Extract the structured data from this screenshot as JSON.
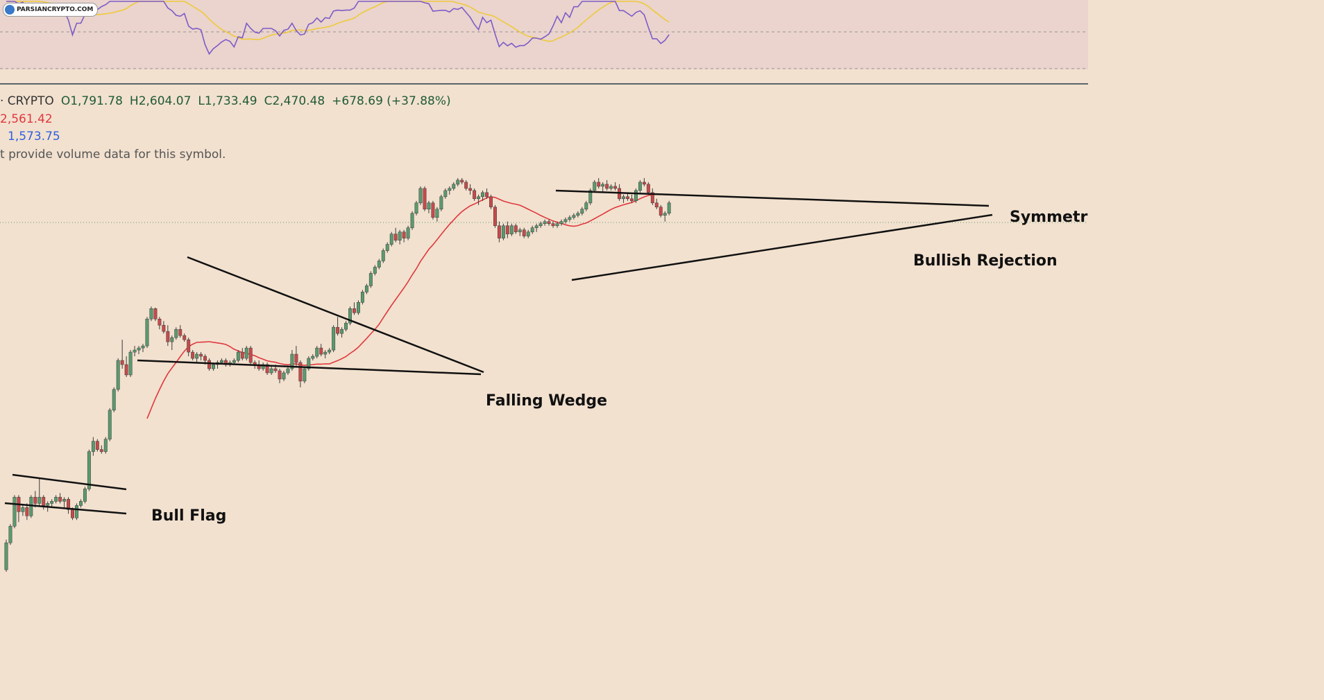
{
  "watermark": "PARSIANCRYPTO.COM",
  "legend": {
    "symbol": "· CRYPTO",
    "open": "O1,791.78",
    "high": "H2,604.07",
    "low": "L1,733.49",
    "close": "C2,470.48",
    "change": "+678.69 (+37.88%)",
    "ma_red": "2,561.42",
    "ma_blue": "1,573.75",
    "volume_note": "t provide volume data for this symbol."
  },
  "annotations": {
    "bull_flag": "Bull Flag",
    "falling_wedge": "Falling Wedge",
    "symmetric": "Symmetri",
    "bullish_rejection": "Bullish Rejection"
  },
  "colors": {
    "up": "#5a9a6e",
    "down": "#c74a4a",
    "ma_red": "#e0383e",
    "ma_blue": "#2f5fe0",
    "rsi": "#7e5bc8",
    "rsi_ma": "#efc93b"
  },
  "chart_data": {
    "type": "candlestick",
    "title": "",
    "series": [
      {
        "name": "price",
        "ohlc": [
          [
            1120,
            1265,
            1110,
            1250
          ],
          [
            1250,
            1340,
            1240,
            1330
          ],
          [
            1330,
            1480,
            1320,
            1470
          ],
          [
            1470,
            1480,
            1350,
            1400
          ],
          [
            1400,
            1430,
            1380,
            1420
          ],
          [
            1420,
            1440,
            1360,
            1380
          ],
          [
            1380,
            1480,
            1370,
            1470
          ],
          [
            1470,
            1500,
            1420,
            1440
          ],
          [
            1440,
            1560,
            1430,
            1470
          ],
          [
            1470,
            1480,
            1410,
            1430
          ],
          [
            1430,
            1450,
            1400,
            1440
          ],
          [
            1440,
            1460,
            1420,
            1450
          ],
          [
            1450,
            1480,
            1440,
            1470
          ],
          [
            1470,
            1490,
            1440,
            1450
          ],
          [
            1450,
            1470,
            1420,
            1460
          ],
          [
            1460,
            1470,
            1390,
            1410
          ],
          [
            1410,
            1420,
            1360,
            1370
          ],
          [
            1370,
            1440,
            1360,
            1430
          ],
          [
            1430,
            1460,
            1420,
            1450
          ],
          [
            1450,
            1520,
            1440,
            1510
          ],
          [
            1510,
            1700,
            1500,
            1690
          ],
          [
            1690,
            1760,
            1670,
            1740
          ],
          [
            1740,
            1750,
            1690,
            1700
          ],
          [
            1700,
            1720,
            1680,
            1690
          ],
          [
            1690,
            1760,
            1680,
            1750
          ],
          [
            1750,
            1900,
            1740,
            1890
          ],
          [
            1890,
            2000,
            1880,
            1990
          ],
          [
            1990,
            2140,
            1980,
            2130
          ],
          [
            2130,
            2230,
            2090,
            2110
          ],
          [
            2110,
            2150,
            2050,
            2060
          ],
          [
            2060,
            2180,
            2050,
            2170
          ],
          [
            2170,
            2200,
            2150,
            2180
          ],
          [
            2180,
            2200,
            2160,
            2190
          ],
          [
            2190,
            2210,
            2170,
            2200
          ],
          [
            2200,
            2340,
            2190,
            2330
          ],
          [
            2330,
            2390,
            2320,
            2380
          ],
          [
            2380,
            2385,
            2320,
            2330
          ],
          [
            2330,
            2340,
            2280,
            2300
          ],
          [
            2300,
            2320,
            2260,
            2270
          ],
          [
            2270,
            2300,
            2200,
            2220
          ],
          [
            2220,
            2250,
            2180,
            2240
          ],
          [
            2240,
            2290,
            2230,
            2280
          ],
          [
            2280,
            2300,
            2240,
            2250
          ],
          [
            2250,
            2260,
            2220,
            2230
          ],
          [
            2230,
            2240,
            2150,
            2170
          ],
          [
            2170,
            2180,
            2130,
            2140
          ],
          [
            2140,
            2170,
            2120,
            2160
          ],
          [
            2160,
            2170,
            2130,
            2150
          ],
          [
            2150,
            2160,
            2110,
            2130
          ],
          [
            2130,
            2140,
            2080,
            2090
          ],
          [
            2090,
            2120,
            2080,
            2110
          ],
          [
            2110,
            2130,
            2090,
            2120
          ],
          [
            2120,
            2140,
            2110,
            2130
          ],
          [
            2130,
            2140,
            2100,
            2110
          ],
          [
            2110,
            2130,
            2100,
            2120
          ],
          [
            2120,
            2140,
            2110,
            2130
          ],
          [
            2130,
            2180,
            2120,
            2170
          ],
          [
            2170,
            2190,
            2130,
            2140
          ],
          [
            2140,
            2200,
            2130,
            2190
          ],
          [
            2190,
            2200,
            2110,
            2120
          ],
          [
            2120,
            2130,
            2090,
            2110
          ],
          [
            2110,
            2130,
            2080,
            2090
          ],
          [
            2090,
            2120,
            2080,
            2110
          ],
          [
            2110,
            2120,
            2060,
            2070
          ],
          [
            2070,
            2100,
            2060,
            2090
          ],
          [
            2090,
            2110,
            2070,
            2080
          ],
          [
            2080,
            2090,
            2020,
            2040
          ],
          [
            2040,
            2080,
            2030,
            2070
          ],
          [
            2070,
            2100,
            2060,
            2090
          ],
          [
            2090,
            2180,
            2080,
            2160
          ],
          [
            2160,
            2200,
            2100,
            2120
          ],
          [
            2120,
            2130,
            2000,
            2030
          ],
          [
            2030,
            2100,
            2020,
            2090
          ],
          [
            2090,
            2150,
            2080,
            2140
          ],
          [
            2140,
            2160,
            2130,
            2150
          ],
          [
            2150,
            2200,
            2140,
            2190
          ],
          [
            2190,
            2210,
            2150,
            2160
          ],
          [
            2160,
            2180,
            2140,
            2170
          ],
          [
            2170,
            2190,
            2160,
            2180
          ],
          [
            2180,
            2300,
            2170,
            2290
          ],
          [
            2290,
            2340,
            2250,
            2260
          ],
          [
            2260,
            2290,
            2240,
            2280
          ],
          [
            2280,
            2320,
            2270,
            2310
          ],
          [
            2310,
            2390,
            2300,
            2380
          ],
          [
            2380,
            2410,
            2350,
            2360
          ],
          [
            2360,
            2420,
            2350,
            2410
          ],
          [
            2410,
            2470,
            2400,
            2460
          ],
          [
            2460,
            2500,
            2450,
            2490
          ],
          [
            2490,
            2560,
            2480,
            2550
          ],
          [
            2550,
            2590,
            2540,
            2580
          ],
          [
            2580,
            2620,
            2570,
            2610
          ],
          [
            2610,
            2670,
            2600,
            2660
          ],
          [
            2660,
            2700,
            2650,
            2690
          ],
          [
            2690,
            2750,
            2680,
            2740
          ],
          [
            2740,
            2770,
            2700,
            2710
          ],
          [
            2710,
            2760,
            2690,
            2750
          ],
          [
            2750,
            2760,
            2700,
            2720
          ],
          [
            2720,
            2780,
            2710,
            2770
          ],
          [
            2770,
            2850,
            2760,
            2840
          ],
          [
            2840,
            2900,
            2830,
            2890
          ],
          [
            2890,
            2970,
            2880,
            2960
          ],
          [
            2960,
            2970,
            2850,
            2860
          ],
          [
            2860,
            2900,
            2840,
            2890
          ],
          [
            2890,
            2900,
            2810,
            2820
          ],
          [
            2820,
            2870,
            2800,
            2860
          ],
          [
            2860,
            2930,
            2850,
            2920
          ],
          [
            2920,
            2960,
            2910,
            2950
          ],
          [
            2950,
            2970,
            2930,
            2960
          ],
          [
            2960,
            2990,
            2950,
            2980
          ],
          [
            2980,
            3010,
            2970,
            3000
          ],
          [
            3000,
            3010,
            2980,
            2990
          ],
          [
            2990,
            3000,
            2950,
            2960
          ],
          [
            2960,
            2980,
            2930,
            2950
          ],
          [
            2950,
            2960,
            2900,
            2910
          ],
          [
            2910,
            2930,
            2880,
            2920
          ],
          [
            2920,
            2950,
            2900,
            2940
          ],
          [
            2940,
            2960,
            2910,
            2920
          ],
          [
            2920,
            2930,
            2860,
            2870
          ],
          [
            2870,
            2880,
            2770,
            2780
          ],
          [
            2780,
            2800,
            2700,
            2720
          ],
          [
            2720,
            2790,
            2710,
            2780
          ],
          [
            2780,
            2800,
            2720,
            2740
          ],
          [
            2740,
            2790,
            2730,
            2780
          ],
          [
            2780,
            2790,
            2740,
            2750
          ],
          [
            2750,
            2770,
            2730,
            2760
          ],
          [
            2760,
            2770,
            2720,
            2730
          ],
          [
            2730,
            2760,
            2720,
            2750
          ],
          [
            2750,
            2780,
            2740,
            2770
          ],
          [
            2770,
            2790,
            2750,
            2780
          ],
          [
            2780,
            2800,
            2770,
            2790
          ],
          [
            2790,
            2810,
            2780,
            2800
          ],
          [
            2800,
            2810,
            2780,
            2790
          ],
          [
            2790,
            2800,
            2770,
            2780
          ],
          [
            2780,
            2800,
            2770,
            2790
          ],
          [
            2790,
            2810,
            2780,
            2800
          ],
          [
            2800,
            2820,
            2790,
            2810
          ],
          [
            2810,
            2830,
            2800,
            2820
          ],
          [
            2820,
            2840,
            2810,
            2830
          ],
          [
            2830,
            2850,
            2820,
            2840
          ],
          [
            2840,
            2870,
            2830,
            2860
          ],
          [
            2860,
            2900,
            2850,
            2890
          ],
          [
            2890,
            2960,
            2880,
            2950
          ],
          [
            2950,
            3000,
            2940,
            2990
          ],
          [
            2990,
            3010,
            2960,
            2970
          ],
          [
            2970,
            2990,
            2940,
            2980
          ],
          [
            2980,
            3000,
            2950,
            2960
          ],
          [
            2960,
            2980,
            2950,
            2970
          ],
          [
            2970,
            2990,
            2950,
            2960
          ],
          [
            2960,
            2980,
            2900,
            2910
          ],
          [
            2910,
            2930,
            2890,
            2920
          ],
          [
            2920,
            2940,
            2900,
            2910
          ],
          [
            2910,
            2930,
            2890,
            2900
          ],
          [
            2900,
            2960,
            2890,
            2950
          ],
          [
            2950,
            3000,
            2940,
            2990
          ],
          [
            2990,
            3010,
            2970,
            2980
          ],
          [
            2980,
            2990,
            2930,
            2940
          ],
          [
            2940,
            2960,
            2880,
            2890
          ],
          [
            2890,
            2910,
            2860,
            2870
          ],
          [
            2870,
            2880,
            2820,
            2830
          ],
          [
            2830,
            2850,
            2800,
            2840
          ],
          [
            2840,
            2900,
            2830,
            2890
          ]
        ]
      },
      {
        "name": "MA",
        "color": "red"
      },
      {
        "name": "MA",
        "color": "blue"
      },
      {
        "name": "RSI"
      }
    ],
    "patterns": [
      "Bull Flag",
      "Falling Wedge",
      "Symmetri",
      "Bullish Rejection"
    ]
  }
}
